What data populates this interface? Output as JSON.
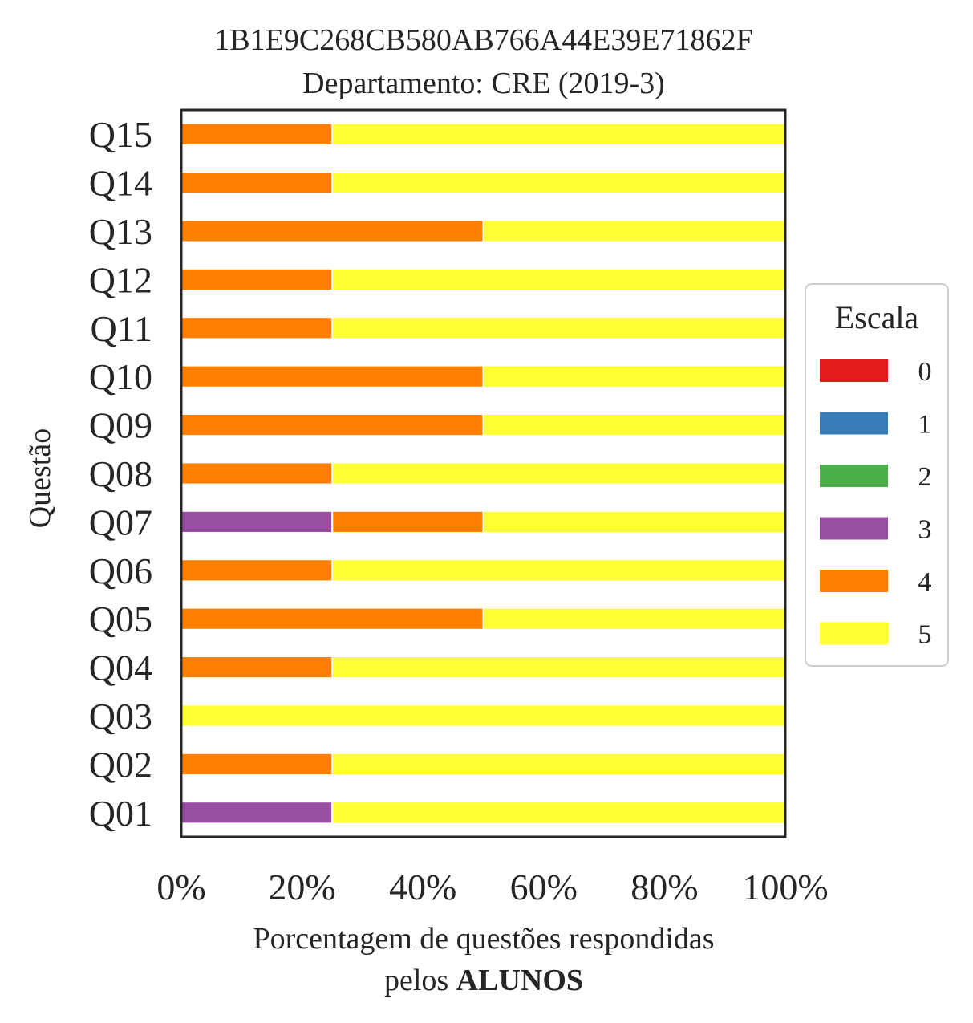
{
  "chart_data": {
    "type": "bar",
    "orientation": "horizontal",
    "stacked": true,
    "title": "1B1E9C268CB580AB766A44E39E71862F",
    "subtitle": "Departamento: CRE (2019-3)",
    "xlabel_line1": "Porcentagem de questões respondidas",
    "xlabel_line2_prefix": "pelos ",
    "xlabel_line2_bold": "ALUNOS",
    "ylabel": "Questão",
    "xlim": [
      0,
      100
    ],
    "x_ticks": [
      "0%",
      "20%",
      "40%",
      "60%",
      "80%",
      "100%"
    ],
    "categories": [
      "Q01",
      "Q02",
      "Q03",
      "Q04",
      "Q05",
      "Q06",
      "Q07",
      "Q08",
      "Q09",
      "Q10",
      "Q11",
      "Q12",
      "Q13",
      "Q14",
      "Q15"
    ],
    "legend_title": "Escala",
    "legend_position": "center-right",
    "grid": false,
    "series": [
      {
        "name": "0",
        "color": "#e41a1c",
        "values": [
          0,
          0,
          0,
          0,
          0,
          0,
          0,
          0,
          0,
          0,
          0,
          0,
          0,
          0,
          0
        ]
      },
      {
        "name": "1",
        "color": "#377eb8",
        "values": [
          0,
          0,
          0,
          0,
          0,
          0,
          0,
          0,
          0,
          0,
          0,
          0,
          0,
          0,
          0
        ]
      },
      {
        "name": "2",
        "color": "#4daf4a",
        "values": [
          0,
          0,
          0,
          0,
          0,
          0,
          0,
          0,
          0,
          0,
          0,
          0,
          0,
          0,
          0
        ]
      },
      {
        "name": "3",
        "color": "#984ea3",
        "values": [
          25,
          0,
          0,
          0,
          0,
          0,
          25,
          0,
          0,
          0,
          0,
          0,
          0,
          0,
          0
        ]
      },
      {
        "name": "4",
        "color": "#ff7f00",
        "values": [
          0,
          25,
          0,
          25,
          50,
          25,
          25,
          25,
          50,
          50,
          25,
          25,
          50,
          25,
          25
        ]
      },
      {
        "name": "5",
        "color": "#ffff33",
        "values": [
          75,
          75,
          100,
          75,
          50,
          75,
          50,
          75,
          50,
          50,
          75,
          75,
          50,
          75,
          75
        ]
      }
    ]
  }
}
